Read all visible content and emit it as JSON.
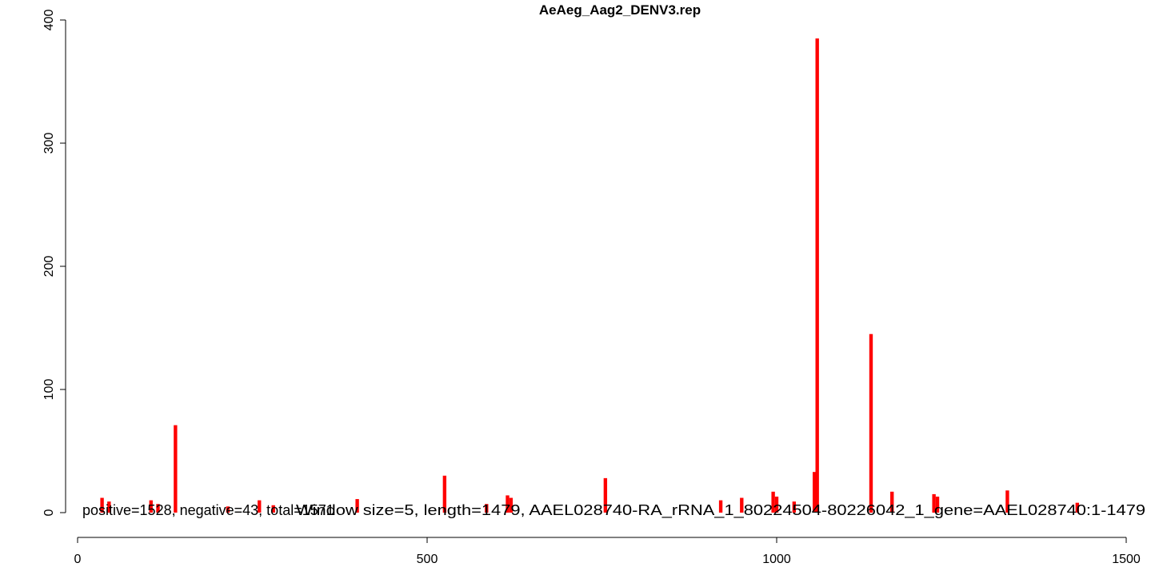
{
  "chart_data": {
    "type": "bar",
    "title": "AeAeg_Aag2_DENV3.rep",
    "annotations": [
      "positive=1528, negative=43, total=1571",
      "Window size=5, length=1479, AAEL028740-RA_rRNA_1_80224504-80226042_1_gene=AAEL028740:1-1479"
    ],
    "x": [
      35,
      45,
      105,
      115,
      140,
      215,
      260,
      280,
      400,
      525,
      585,
      615,
      620,
      755,
      920,
      950,
      995,
      1000,
      1025,
      1054,
      1058,
      1135,
      1165,
      1225,
      1230,
      1330,
      1430
    ],
    "series": [
      {
        "name": "positive",
        "color": "#ff0000",
        "values": [
          12,
          9,
          10,
          7,
          71,
          5,
          10,
          6,
          11,
          30,
          7,
          14,
          12,
          28,
          10,
          12,
          17,
          13,
          9,
          33,
          385,
          145,
          17,
          15,
          13,
          18,
          8
        ]
      }
    ],
    "xlim": [
      0,
      1500
    ],
    "xticks": [
      0,
      500,
      1000,
      1500
    ],
    "ylim": [
      0,
      400
    ],
    "yticks": [
      0,
      100,
      200,
      300,
      400
    ],
    "window_size": 5
  }
}
